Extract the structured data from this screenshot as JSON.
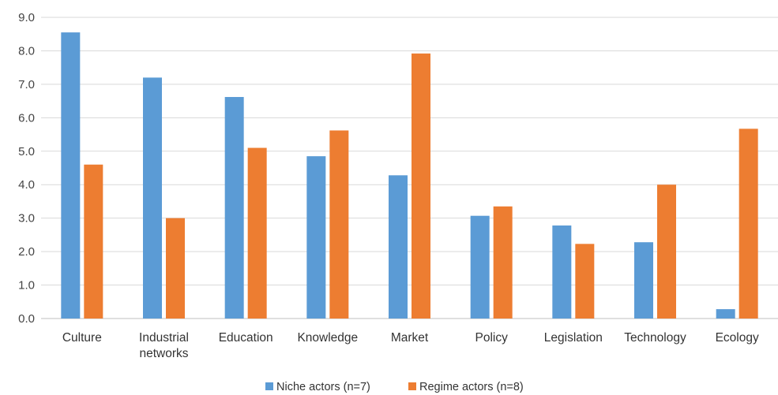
{
  "chart_data": {
    "type": "bar",
    "title": "",
    "xlabel": "",
    "ylabel": "",
    "ylim": [
      0,
      9
    ],
    "yticks": [
      "0.0",
      "1.0",
      "2.0",
      "3.0",
      "4.0",
      "5.0",
      "6.0",
      "7.0",
      "8.0",
      "9.0"
    ],
    "grid": true,
    "legend_position": "bottom",
    "categories": [
      [
        "Culture"
      ],
      [
        "Industrial",
        "networks"
      ],
      [
        "Education"
      ],
      [
        "Knowledge"
      ],
      [
        "Market"
      ],
      [
        "Policy"
      ],
      [
        "Legislation"
      ],
      [
        "Technology"
      ],
      [
        "Ecology"
      ]
    ],
    "series": [
      {
        "name": "Niche actors (n=7)",
        "color": "#5b9bd5",
        "values": [
          8.55,
          7.2,
          6.62,
          4.85,
          4.28,
          3.07,
          2.78,
          2.28,
          0.28
        ]
      },
      {
        "name": "Regime actors (n=8)",
        "color": "#ed7d31",
        "values": [
          4.6,
          3.0,
          5.1,
          5.62,
          7.92,
          3.35,
          2.23,
          4.0,
          5.67
        ]
      }
    ]
  }
}
